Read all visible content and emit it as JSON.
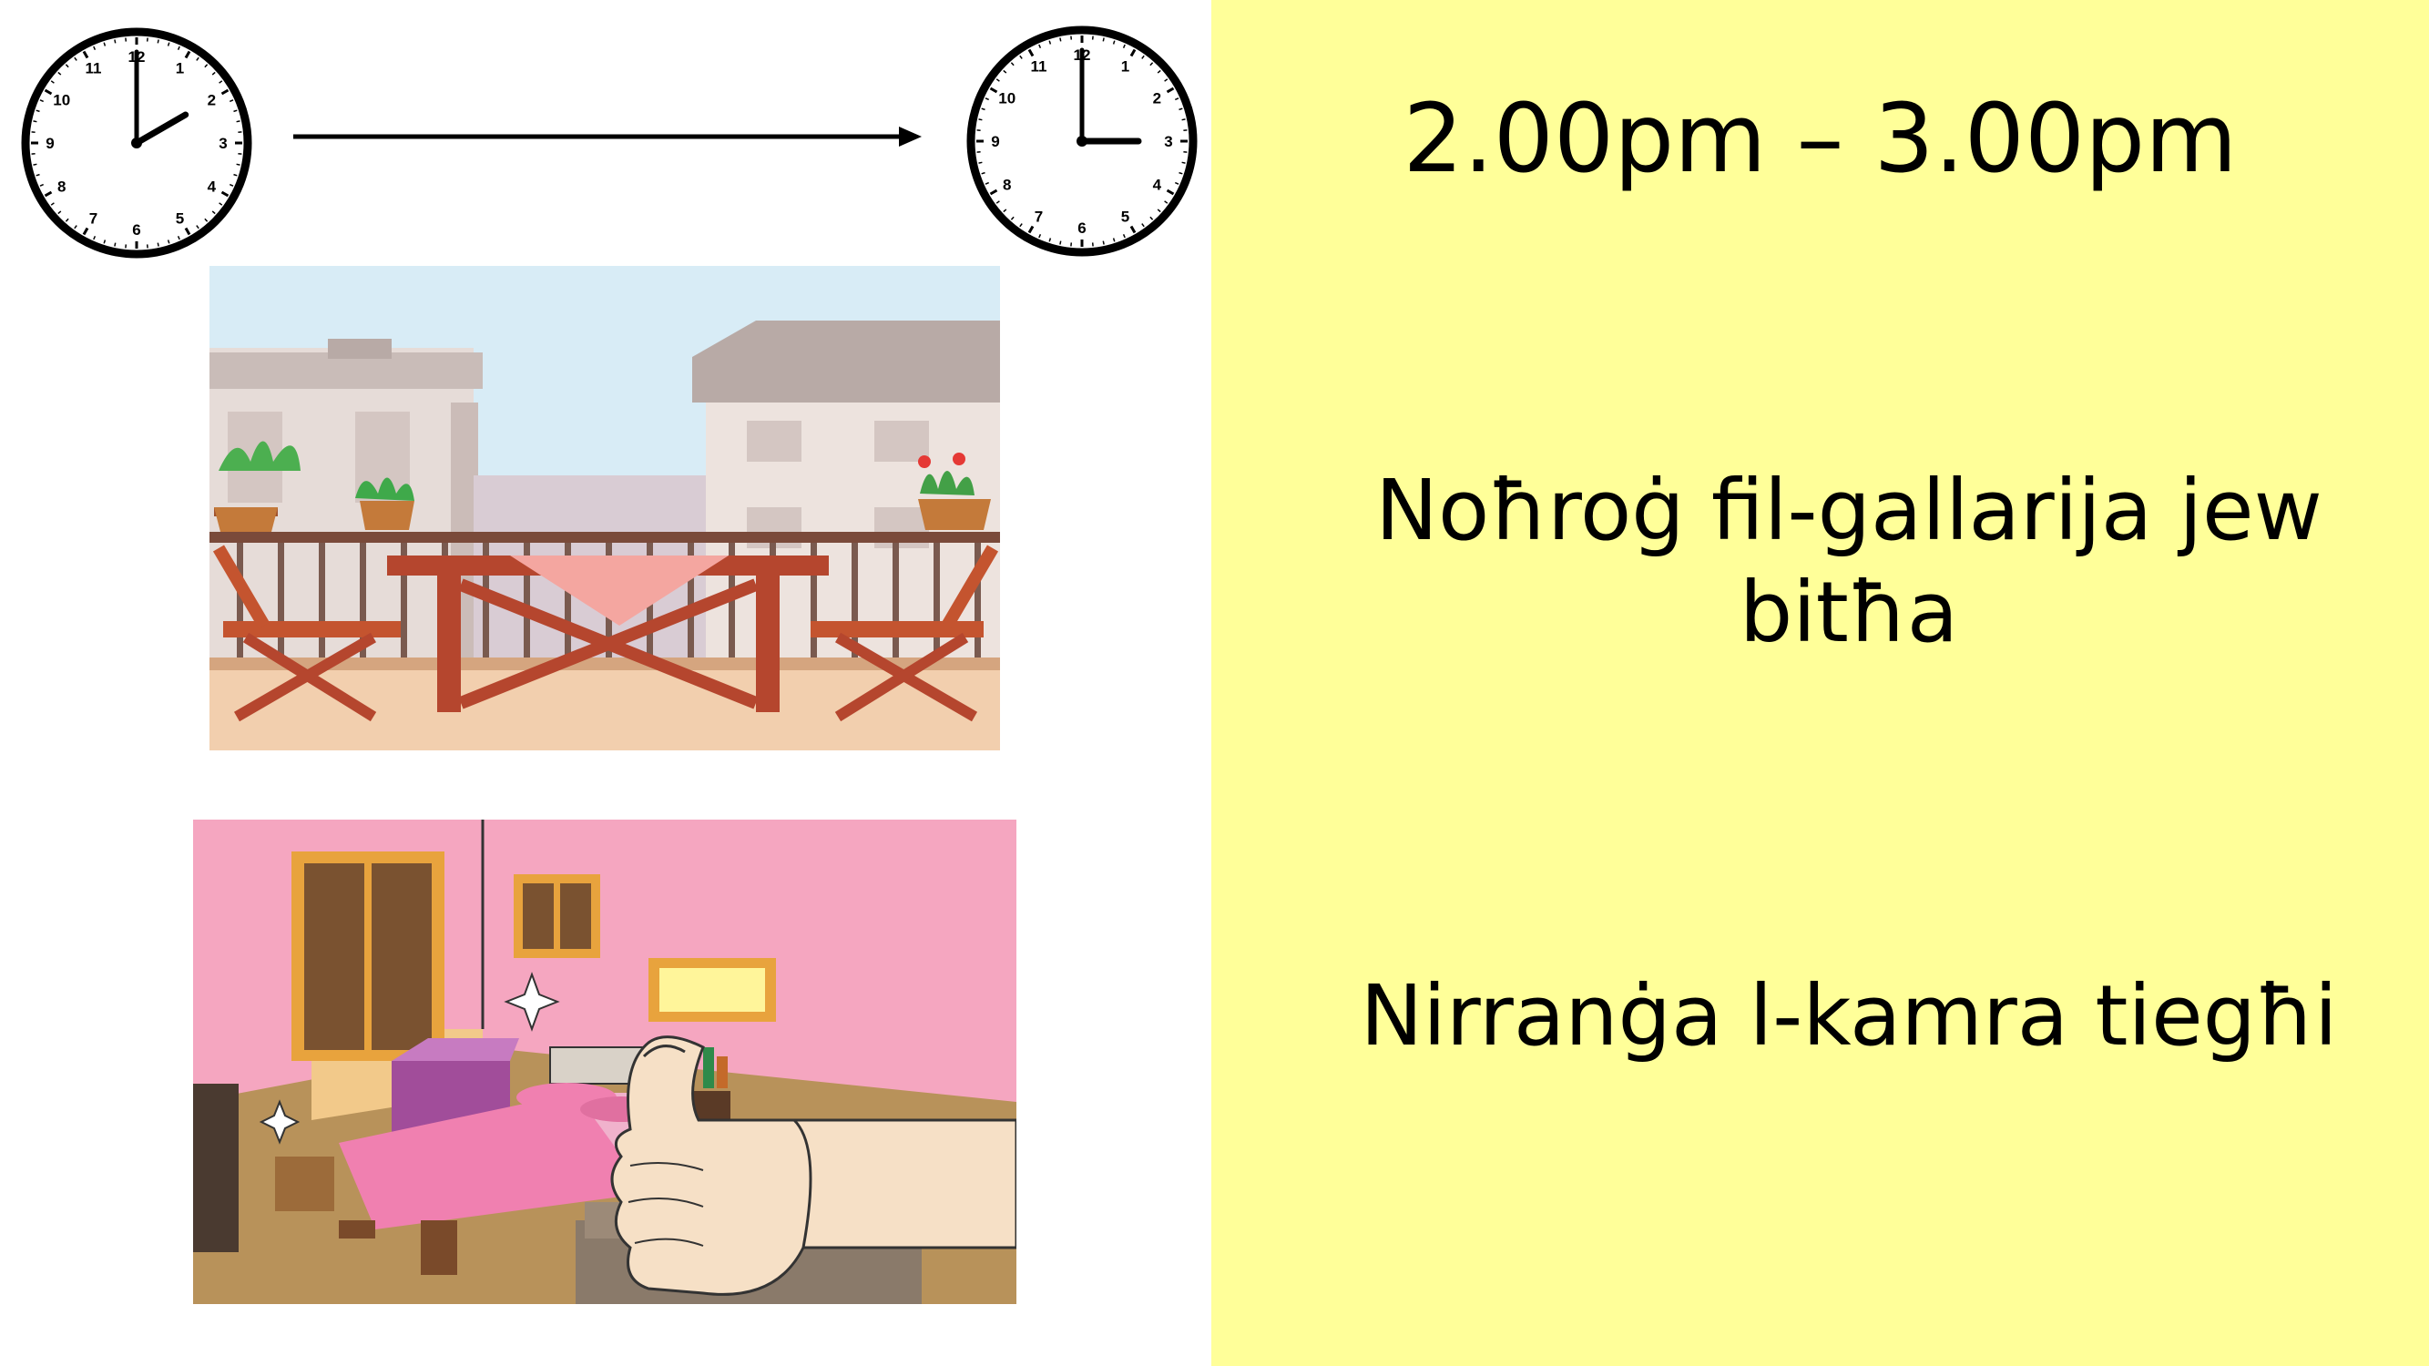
{
  "schedule": {
    "time_range": "2.00pm – 3.00pm",
    "start_clock": {
      "hour": 2,
      "minute": 0
    },
    "end_clock": {
      "hour": 3,
      "minute": 0
    },
    "activities": [
      {
        "text": "Noħroġ fil-gallarija jew bitħa"
      },
      {
        "text": "Nirranġa l-kamra tiegħi"
      }
    ]
  },
  "colors": {
    "right_panel_background": "#ffff99",
    "sky": "#d8ecf6",
    "bedroom_wall": "#f5a6c0"
  },
  "icons": [
    "clock-icon",
    "arrow-right-icon",
    "balcony-illustration",
    "bedroom-thumbs-up-illustration"
  ]
}
